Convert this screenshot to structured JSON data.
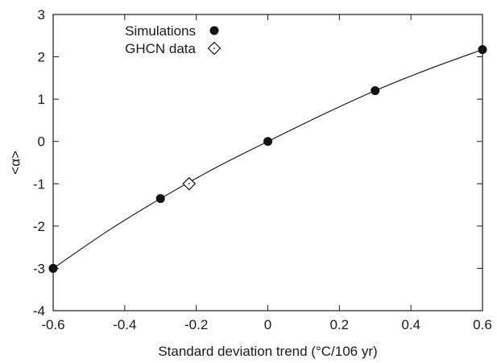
{
  "chart_data": {
    "type": "scatter",
    "xlabel": "Standard deviation trend (°C/106 yr)",
    "ylabel": "<α>",
    "xlim": [
      -0.6,
      0.6
    ],
    "ylim": [
      -4,
      3
    ],
    "x_ticks": [
      "-0.6",
      "-0.4",
      "-0.2",
      "0",
      "0.2",
      "0.4",
      "0.6"
    ],
    "y_ticks": [
      "3",
      "2",
      "1",
      "0",
      "-1",
      "-2",
      "-3",
      "-4"
    ],
    "x_tick_values": [
      -0.6,
      -0.4,
      -0.2,
      0,
      0.2,
      0.4,
      0.6
    ],
    "y_tick_values": [
      3,
      2,
      1,
      0,
      -1,
      -2,
      -3,
      -4
    ],
    "grid": false,
    "legend_position": "top-left",
    "series": [
      {
        "name": "Simulations",
        "marker": "filled-circle",
        "x": [
          -0.6,
          -0.3,
          0,
          0.3,
          0.6
        ],
        "y": [
          -3.0,
          -1.35,
          0.0,
          1.2,
          2.17
        ]
      },
      {
        "name": "GHCN data",
        "marker": "open-diamond",
        "x": [
          -0.22
        ],
        "y": [
          -1.0
        ]
      }
    ],
    "fit_curve": {
      "style": "solid-line",
      "x": [
        -0.6,
        -0.45,
        -0.3,
        -0.15,
        0,
        0.15,
        0.3,
        0.45,
        0.6
      ],
      "y": [
        -3.0,
        -2.13,
        -1.35,
        -0.64,
        0.0,
        0.62,
        1.2,
        1.71,
        2.17
      ]
    },
    "colors": {
      "marker": "#111111",
      "axis": "#1a1a1a",
      "curve": "#111111"
    }
  }
}
